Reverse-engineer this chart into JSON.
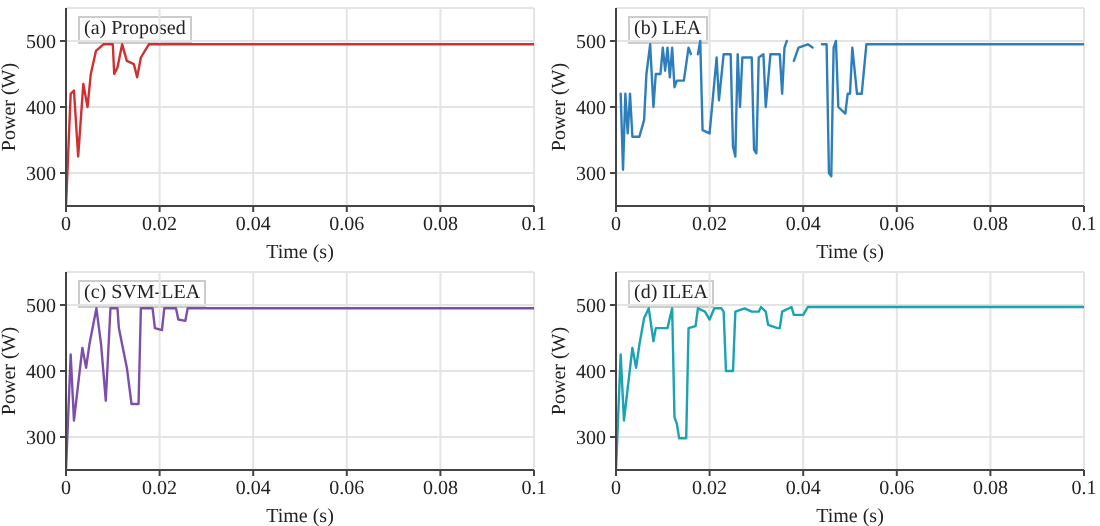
{
  "chart_data": [
    {
      "type": "line",
      "title": "(a) Proposed",
      "xlabel": "Time (s)",
      "ylabel": "Power (W)",
      "xlim": [
        0,
        0.1
      ],
      "xticks": [
        0,
        0.02,
        0.04,
        0.06,
        0.08,
        0.1
      ],
      "ylim": [
        250,
        550
      ],
      "yticks": [
        300,
        400,
        500
      ],
      "grid": true,
      "series": [
        {
          "color": "#d03030",
          "x": [
            0,
            0.001,
            0.0017,
            0.0026,
            0.0037,
            0.0046,
            0.0053,
            0.0064,
            0.008,
            0.01,
            0.0103,
            0.011,
            0.012,
            0.013,
            0.0145,
            0.0152,
            0.016,
            0.0177,
            0.1
          ],
          "values": [
            250,
            420,
            425,
            325,
            435,
            400,
            450,
            485,
            495,
            495,
            450,
            460,
            495,
            470,
            465,
            445,
            475,
            495,
            495
          ]
        }
      ]
    },
    {
      "type": "line",
      "title": "(b) LEA",
      "xlabel": "Time (s)",
      "ylabel": "Power (W)",
      "xlim": [
        0,
        0.1
      ],
      "xticks": [
        0,
        0.02,
        0.04,
        0.06,
        0.08,
        0.1
      ],
      "ylim": [
        250,
        550
      ],
      "yticks": [
        300,
        400,
        500
      ],
      "grid": true,
      "series": [
        {
          "color": "#2e7ebc",
          "x": [
            0.001,
            0.0015,
            0.002,
            0.0025,
            0.003,
            0.0035,
            0.005,
            0.006,
            0.0065,
            0.0073,
            0.008,
            0.0085,
            0.0095,
            0.01,
            0.0105,
            0.011,
            0.0115,
            0.012,
            0.0125,
            0.013,
            0.0145,
            0.0155,
            0.016,
            0.0165,
            0.017,
            0.0175,
            0.018,
            0.0185,
            0.02,
            0.0215,
            0.022,
            0.023,
            0.0245,
            0.025,
            0.0255,
            0.026,
            0.0265,
            0.027,
            0.029,
            0.0295,
            0.03,
            0.0305,
            0.0315,
            0.032,
            0.033,
            0.035,
            0.0355,
            0.036,
            0.0365,
            0.037,
            0.0375,
            0.038,
            0.039,
            0.041,
            0.042,
            0.0425,
            0.0435,
            0.044,
            0.045,
            0.0455,
            0.046,
            0.0465,
            0.047,
            0.0475,
            0.049,
            0.0495,
            0.05,
            0.0505,
            0.0515,
            0.0525,
            0.0535,
            0.1
          ],
          "values": [
            420,
            305,
            420,
            360,
            420,
            355,
            355,
            380,
            450,
            495,
            400,
            450,
            450,
            490,
            455,
            490,
            445,
            490,
            430,
            440,
            440,
            490,
            480,
            null,
            null,
            480,
            500,
            365,
            360,
            475,
            410,
            480,
            480,
            340,
            325,
            480,
            400,
            475,
            475,
            335,
            330,
            475,
            480,
            400,
            480,
            480,
            420,
            490,
            500,
            null,
            null,
            470,
            490,
            495,
            490,
            null,
            null,
            495,
            495,
            300,
            295,
            490,
            500,
            400,
            390,
            420,
            420,
            490,
            420,
            420,
            495,
            495
          ]
        }
      ]
    },
    {
      "type": "line",
      "title": "(c) SVM-LEA",
      "xlabel": "Time (s)",
      "ylabel": "Power (W)",
      "xlim": [
        0,
        0.1
      ],
      "xticks": [
        0,
        0.02,
        0.04,
        0.06,
        0.08,
        0.1
      ],
      "ylim": [
        250,
        550
      ],
      "yticks": [
        300,
        400,
        500
      ],
      "grid": true,
      "series": [
        {
          "color": "#7e4fa8",
          "x": [
            0,
            0.001,
            0.0017,
            0.0035,
            0.0043,
            0.005,
            0.0065,
            0.0075,
            0.0085,
            0.0095,
            0.011,
            0.0113,
            0.012,
            0.013,
            0.014,
            0.0155,
            0.016,
            0.0185,
            0.019,
            0.0205,
            0.021,
            0.0235,
            0.024,
            0.0255,
            0.026,
            0.1
          ],
          "values": [
            250,
            425,
            325,
            435,
            405,
            440,
            495,
            440,
            355,
            495,
            495,
            465,
            440,
            405,
            350,
            350,
            495,
            495,
            465,
            462,
            495,
            495,
            478,
            476,
            495,
            495
          ]
        }
      ]
    },
    {
      "type": "line",
      "title": "(d) ILEA",
      "xlabel": "Time (s)",
      "ylabel": "Power (W)",
      "xlim": [
        0,
        0.1
      ],
      "xticks": [
        0,
        0.02,
        0.04,
        0.06,
        0.08,
        0.1
      ],
      "ylim": [
        250,
        550
      ],
      "yticks": [
        300,
        400,
        500
      ],
      "grid": true,
      "series": [
        {
          "color": "#1aa3b0",
          "x": [
            0,
            0.001,
            0.0017,
            0.0035,
            0.0043,
            0.005,
            0.006,
            0.007,
            0.008,
            0.0085,
            0.011,
            0.012,
            0.0125,
            0.013,
            0.0135,
            0.015,
            0.0155,
            0.017,
            0.0175,
            0.019,
            0.02,
            0.021,
            0.0225,
            0.023,
            0.0235,
            0.025,
            0.0255,
            0.0275,
            0.029,
            0.0305,
            0.031,
            0.032,
            0.0325,
            0.0345,
            0.035,
            0.0355,
            0.0375,
            0.038,
            0.04,
            0.041,
            0.1
          ],
          "values": [
            250,
            425,
            325,
            435,
            405,
            440,
            480,
            495,
            445,
            465,
            465,
            495,
            330,
            320,
            298,
            298,
            465,
            468,
            495,
            490,
            478,
            495,
            495,
            490,
            400,
            400,
            490,
            495,
            490,
            490,
            497,
            490,
            470,
            465,
            465,
            490,
            497,
            485,
            485,
            497,
            497
          ]
        }
      ]
    }
  ]
}
